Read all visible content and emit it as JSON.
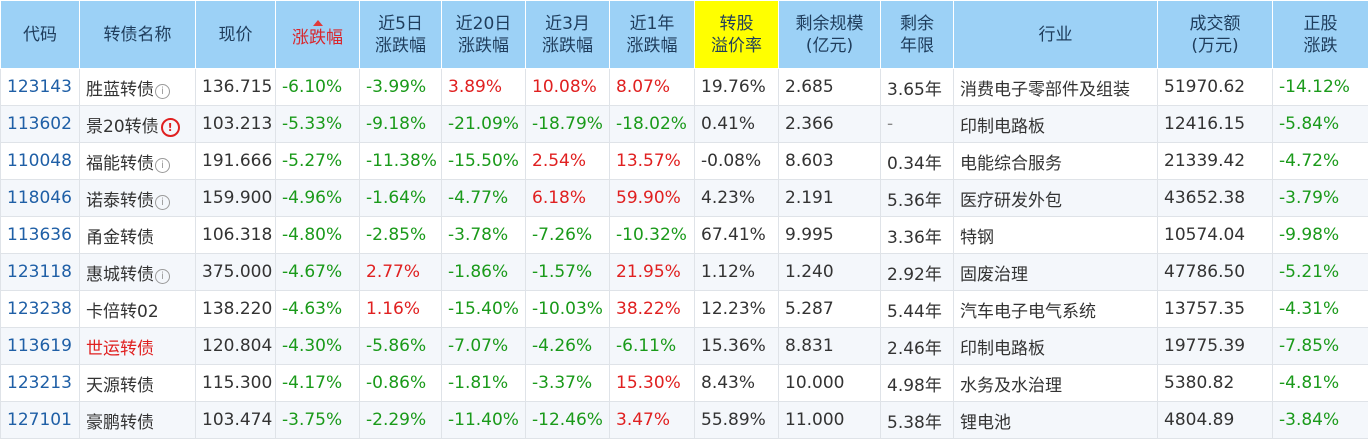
{
  "columns": [
    "代码",
    "转债名称",
    "现价",
    "涨跌幅",
    "近5日\n涨跌幅",
    "近20日\n涨跌幅",
    "近3月\n涨跌幅",
    "近1年\n涨跌幅",
    "转股\n溢价率",
    "剩余规模\n(亿元)",
    "剩余\n年限",
    "行业",
    "成交额\n(万元)",
    "正股\n涨跌"
  ],
  "sort_column": "涨跌幅",
  "highlight_color": "#ffff00",
  "header_color": "#9cd1f6",
  "rows": [
    {
      "code": "123143",
      "name": "胜蓝转债",
      "icon": "info",
      "price": "136.715",
      "chg": "-6.10%",
      "d5": "-3.99%",
      "d20": "3.89%",
      "m3": "10.08%",
      "y1": "8.07%",
      "prem": "19.76%",
      "scale": "2.685",
      "years": "3.65年",
      "industry": "消费电子零部件及组装",
      "turnover": "51970.62",
      "stock": "-14.12%"
    },
    {
      "code": "113602",
      "name": "景20转债",
      "icon": "warn",
      "price": "103.213",
      "chg": "-5.33%",
      "d5": "-9.18%",
      "d20": "-21.09%",
      "m3": "-18.79%",
      "y1": "-18.02%",
      "prem": "0.41%",
      "scale": "2.366",
      "years": "-",
      "industry": "印制电路板",
      "turnover": "12416.15",
      "stock": "-5.84%"
    },
    {
      "code": "110048",
      "name": "福能转债",
      "icon": "info",
      "price": "191.666",
      "chg": "-5.27%",
      "d5": "-11.38%",
      "d20": "-15.50%",
      "m3": "2.54%",
      "y1": "13.57%",
      "prem": "-0.08%",
      "scale": "8.603",
      "years": "0.34年",
      "industry": "电能综合服务",
      "turnover": "21339.42",
      "stock": "-4.72%"
    },
    {
      "code": "118046",
      "name": "诺泰转债",
      "icon": "info",
      "price": "159.900",
      "chg": "-4.96%",
      "d5": "-1.64%",
      "d20": "-4.77%",
      "m3": "6.18%",
      "y1": "59.90%",
      "prem": "4.23%",
      "scale": "2.191",
      "years": "5.36年",
      "industry": "医疗研发外包",
      "turnover": "43652.38",
      "stock": "-3.79%"
    },
    {
      "code": "113636",
      "name": "甬金转债",
      "icon": "",
      "price": "106.318",
      "chg": "-4.80%",
      "d5": "-2.85%",
      "d20": "-3.78%",
      "m3": "-7.26%",
      "y1": "-10.32%",
      "prem": "67.41%",
      "scale": "9.995",
      "years": "3.36年",
      "industry": "特钢",
      "turnover": "10574.04",
      "stock": "-9.98%"
    },
    {
      "code": "123118",
      "name": "惠城转债",
      "icon": "info",
      "price": "375.000",
      "chg": "-4.67%",
      "d5": "2.77%",
      "d20": "-1.86%",
      "m3": "-1.57%",
      "y1": "21.95%",
      "prem": "1.12%",
      "scale": "1.240",
      "years": "2.92年",
      "industry": "固废治理",
      "turnover": "47786.50",
      "stock": "-5.21%"
    },
    {
      "code": "123238",
      "name": "卡倍转02",
      "icon": "",
      "price": "138.220",
      "chg": "-4.63%",
      "d5": "1.16%",
      "d20": "-15.40%",
      "m3": "-10.03%",
      "y1": "38.22%",
      "prem": "12.23%",
      "scale": "5.287",
      "years": "5.44年",
      "industry": "汽车电子电气系统",
      "turnover": "13757.35",
      "stock": "-4.31%"
    },
    {
      "code": "113619",
      "name": "世运转债",
      "icon": "",
      "name_red": true,
      "price": "120.804",
      "chg": "-4.30%",
      "d5": "-5.86%",
      "d20": "-7.07%",
      "m3": "-4.26%",
      "y1": "-6.11%",
      "prem": "15.36%",
      "scale": "8.831",
      "years": "2.46年",
      "industry": "印制电路板",
      "turnover": "19775.39",
      "stock": "-7.85%"
    },
    {
      "code": "123213",
      "name": "天源转债",
      "icon": "",
      "price": "115.300",
      "chg": "-4.17%",
      "d5": "-0.86%",
      "d20": "-1.81%",
      "m3": "-3.37%",
      "y1": "15.30%",
      "prem": "8.43%",
      "scale": "10.000",
      "years": "4.98年",
      "industry": "水务及水治理",
      "turnover": "5380.82",
      "stock": "-4.81%"
    },
    {
      "code": "127101",
      "name": "豪鹏转债",
      "icon": "",
      "price": "103.474",
      "chg": "-3.75%",
      "d5": "-2.29%",
      "d20": "-11.40%",
      "m3": "-12.46%",
      "y1": "3.47%",
      "prem": "55.89%",
      "scale": "11.000",
      "years": "5.38年",
      "industry": "锂电池",
      "turnover": "4804.89",
      "stock": "-3.84%"
    }
  ]
}
